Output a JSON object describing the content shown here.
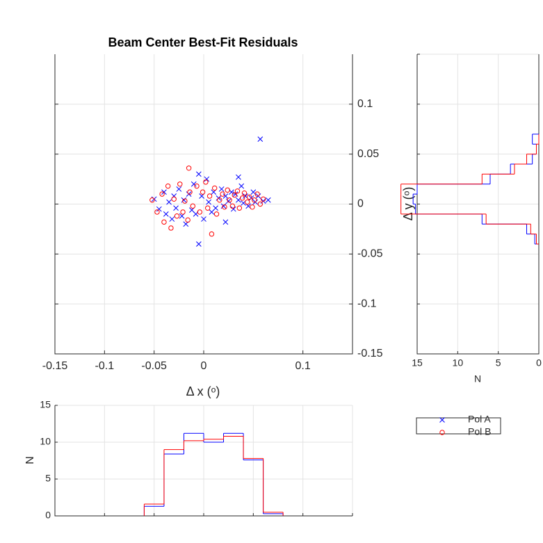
{
  "chart_data": [
    {
      "type": "scatter",
      "title": "Beam Center Best-Fit Residuals",
      "xlabel": "Δ x (ᵒ)",
      "xlim": [
        -0.15,
        0.15
      ],
      "ylim": [
        -0.15,
        0.15
      ],
      "xticks": [
        -0.15,
        -0.1,
        -0.05,
        0,
        0.1
      ],
      "yticks": [
        -0.15,
        -0.1,
        -0.05,
        0,
        0.05,
        0.1
      ],
      "grid": true,
      "ytick_side": "right",
      "legend": "below-right-outside",
      "series": [
        {
          "name": "Pol A",
          "color": "#0000ff",
          "marker": "x",
          "x": [
            -0.05,
            -0.045,
            -0.04,
            -0.038,
            -0.035,
            -0.032,
            -0.03,
            -0.028,
            -0.025,
            -0.022,
            -0.02,
            -0.018,
            -0.015,
            -0.012,
            -0.01,
            -0.008,
            -0.005,
            -0.005,
            -0.002,
            0,
            0.003,
            0.005,
            0.008,
            0.01,
            0.012,
            0.015,
            0.018,
            0.02,
            0.022,
            0.025,
            0.028,
            0.03,
            0.032,
            0.035,
            0.038,
            0.04,
            0.042,
            0.045,
            0.048,
            0.05,
            0.052,
            0.055,
            0.057,
            0.06,
            0.065,
            0.022,
            0.035
          ],
          "y": [
            0.005,
            -0.005,
            0.012,
            -0.01,
            0.002,
            -0.015,
            0.008,
            -0.004,
            0.015,
            -0.012,
            0.004,
            -0.02,
            0.01,
            -0.006,
            0.02,
            -0.01,
            0.03,
            -0.04,
            0.008,
            -0.015,
            0.025,
            0.002,
            -0.008,
            0.012,
            -0.004,
            0.006,
            0.015,
            -0.002,
            0.008,
            0.003,
            0.012,
            -0.005,
            0.01,
            0.004,
            0.018,
            0.001,
            0.008,
            -0.002,
            0.006,
            0.012,
            0.002,
            0.008,
            0.065,
            0.003,
            0.004,
            -0.018,
            0.027
          ]
        },
        {
          "name": "Pol B",
          "color": "#ff0000",
          "marker": "o",
          "x": [
            -0.052,
            -0.047,
            -0.042,
            -0.04,
            -0.036,
            -0.033,
            -0.03,
            -0.027,
            -0.024,
            -0.021,
            -0.019,
            -0.016,
            -0.014,
            -0.011,
            -0.015,
            -0.007,
            -0.004,
            -0.001,
            0.002,
            0.004,
            0.006,
            0.008,
            0.011,
            0.013,
            0.016,
            0.019,
            0.021,
            0.024,
            0.026,
            0.029,
            0.031,
            0.034,
            0.036,
            0.039,
            0.041,
            0.044,
            0.046,
            0.049,
            0.051,
            0.054,
            0.057,
            0.06
          ],
          "y": [
            0.004,
            -0.008,
            0.01,
            -0.018,
            0.018,
            -0.024,
            0.005,
            -0.012,
            0.02,
            -0.008,
            0.003,
            -0.016,
            0.012,
            -0.002,
            0.036,
            0.018,
            -0.008,
            0.012,
            0.022,
            -0.004,
            0.008,
            -0.03,
            0.016,
            -0.01,
            0.004,
            0.01,
            -0.003,
            0.014,
            0.004,
            -0.002,
            0.009,
            0.013,
            -0.004,
            0.006,
            0.011,
            0.002,
            0.007,
            -0.003,
            0.004,
            0.01,
            0,
            0.005
          ]
        }
      ]
    },
    {
      "type": "histogram",
      "orientation": "vertical",
      "ylabel": "N",
      "xlim": [
        -0.15,
        0.15
      ],
      "ylim": [
        0,
        15
      ],
      "xticks": [
        -0.15,
        -0.1,
        -0.05,
        0,
        0.05,
        0.1,
        0.15
      ],
      "yticks": [
        0,
        5,
        10,
        15
      ],
      "show_xtick_labels": false,
      "grid": true,
      "bins": [
        -0.06,
        -0.04,
        -0.02,
        0,
        0.02,
        0.04,
        0.06,
        0.08
      ],
      "series": [
        {
          "name": "Pol A",
          "color": "#0000ff",
          "values": [
            1.3,
            8.4,
            11.2,
            10.0,
            11.2,
            7.6,
            0.3
          ]
        },
        {
          "name": "Pol B",
          "color": "#ff0000",
          "values": [
            1.6,
            9.0,
            10.2,
            10.4,
            10.8,
            7.8,
            0.5
          ]
        }
      ]
    },
    {
      "type": "histogram",
      "orientation": "horizontal",
      "xlabel": "N",
      "ylabel": "Δ y (ᵒ)",
      "xlim": [
        0,
        15
      ],
      "xdir": "reverse",
      "ylim": [
        -0.15,
        0.15
      ],
      "xticks": [
        15,
        10,
        5,
        0
      ],
      "yticks": [
        -0.15,
        -0.1,
        -0.05,
        0,
        0.05,
        0.1,
        0.15
      ],
      "show_ytick_labels": false,
      "grid": true,
      "bins": [
        -0.04,
        -0.03,
        -0.02,
        -0.01,
        0,
        0.01,
        0.02,
        0.03,
        0.04,
        0.05,
        0.06,
        0.07
      ],
      "series": [
        {
          "name": "Pol A",
          "color": "#0000ff",
          "values": [
            0.5,
            1.5,
            7,
            15.2,
            15.5,
            15,
            6,
            3.5,
            0.8,
            0.3,
            0.8
          ]
        },
        {
          "name": "Pol B",
          "color": "#ff0000",
          "values": [
            0.3,
            1,
            6.5,
            17,
            17,
            17,
            7,
            3,
            1.5,
            0.3,
            0
          ]
        }
      ]
    }
  ]
}
